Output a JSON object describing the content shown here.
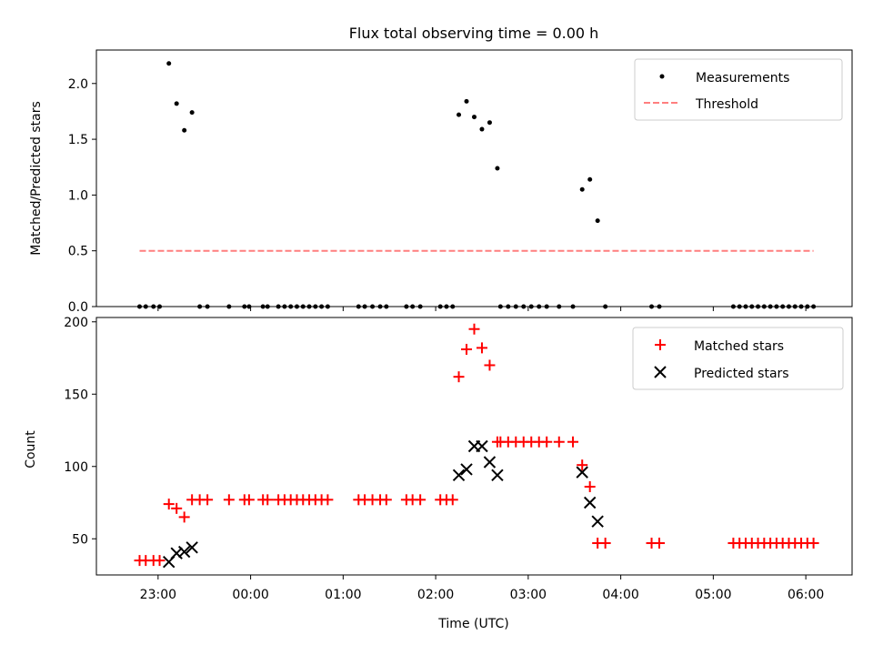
{
  "figure_title": "Flux total observing time = 0.00 h",
  "x_axis_label": "Time (UTC)",
  "colors": {
    "measurement": "#000000",
    "threshold": "#ff7f7f",
    "matched": "#ff0000",
    "predicted": "#000000"
  },
  "chart_data": [
    {
      "type": "scatter",
      "title": "Flux total observing time = 0.00 h",
      "xlabel": "Time (UTC)",
      "ylabel": "Matched/Predicted stars",
      "ylim": [
        0,
        2.3
      ],
      "yticks": [
        "0.0",
        "0.5",
        "1.0",
        "1.5",
        "2.0"
      ],
      "legend": {
        "position": "top-right",
        "entries": [
          "Measurements",
          "Threshold"
        ]
      },
      "series": [
        {
          "name": "Measurements",
          "marker": "dot",
          "points": [
            [
              "22:48",
              0.0
            ],
            [
              "22:52",
              0.0
            ],
            [
              "22:57",
              0.0
            ],
            [
              "23:01",
              0.0
            ],
            [
              "23:07",
              2.18
            ],
            [
              "23:12",
              1.82
            ],
            [
              "23:17",
              1.58
            ],
            [
              "23:22",
              1.74
            ],
            [
              "23:27",
              0.0
            ],
            [
              "23:32",
              0.0
            ],
            [
              "23:46",
              0.0
            ],
            [
              "23:56",
              0.0
            ],
            [
              "23:59",
              0.0
            ],
            [
              "00:08",
              0.0
            ],
            [
              "00:11",
              0.0
            ],
            [
              "00:18",
              0.0
            ],
            [
              "00:22",
              0.0
            ],
            [
              "00:26",
              0.0
            ],
            [
              "00:30",
              0.0
            ],
            [
              "00:34",
              0.0
            ],
            [
              "00:38",
              0.0
            ],
            [
              "00:42",
              0.0
            ],
            [
              "00:46",
              0.0
            ],
            [
              "00:50",
              0.0
            ],
            [
              "01:10",
              0.0
            ],
            [
              "01:14",
              0.0
            ],
            [
              "01:19",
              0.0
            ],
            [
              "01:24",
              0.0
            ],
            [
              "01:28",
              0.0
            ],
            [
              "01:41",
              0.0
            ],
            [
              "01:45",
              0.0
            ],
            [
              "01:50",
              0.0
            ],
            [
              "02:03",
              0.0
            ],
            [
              "02:07",
              0.0
            ],
            [
              "02:11",
              0.0
            ],
            [
              "02:15",
              1.72
            ],
            [
              "02:20",
              1.84
            ],
            [
              "02:25",
              1.7
            ],
            [
              "02:30",
              1.59
            ],
            [
              "02:35",
              1.65
            ],
            [
              "02:40",
              1.24
            ],
            [
              "02:42",
              0.0
            ],
            [
              "02:47",
              0.0
            ],
            [
              "02:52",
              0.0
            ],
            [
              "02:57",
              0.0
            ],
            [
              "03:02",
              0.0
            ],
            [
              "03:07",
              0.0
            ],
            [
              "03:12",
              0.0
            ],
            [
              "03:20",
              0.0
            ],
            [
              "03:29",
              0.0
            ],
            [
              "03:35",
              1.05
            ],
            [
              "03:40",
              1.14
            ],
            [
              "03:45",
              0.77
            ],
            [
              "03:50",
              0.0
            ],
            [
              "04:20",
              0.0
            ],
            [
              "04:25",
              0.0
            ],
            [
              "05:13",
              0.0
            ],
            [
              "05:17",
              0.0
            ],
            [
              "05:21",
              0.0
            ],
            [
              "05:25",
              0.0
            ],
            [
              "05:29",
              0.0
            ],
            [
              "05:33",
              0.0
            ],
            [
              "05:37",
              0.0
            ],
            [
              "05:41",
              0.0
            ],
            [
              "05:45",
              0.0
            ],
            [
              "05:49",
              0.0
            ],
            [
              "05:53",
              0.0
            ],
            [
              "05:57",
              0.0
            ],
            [
              "06:01",
              0.0
            ],
            [
              "06:05",
              0.0
            ]
          ]
        },
        {
          "name": "Threshold",
          "marker": "dashed-line",
          "points": [
            [
              "22:48",
              0.5
            ],
            [
              "06:05",
              0.5
            ]
          ]
        }
      ]
    },
    {
      "type": "scatter",
      "xlabel": "Time (UTC)",
      "ylabel": "Count",
      "ylim": [
        25,
        203
      ],
      "yticks": [
        "50",
        "100",
        "150",
        "200"
      ],
      "xticks": [
        "23:00",
        "00:00",
        "01:00",
        "02:00",
        "03:00",
        "04:00",
        "05:00",
        "06:00"
      ],
      "legend": {
        "position": "top-right",
        "entries": [
          "Matched stars",
          "Predicted stars"
        ]
      },
      "series": [
        {
          "name": "Matched stars",
          "marker": "plus",
          "points": [
            [
              "22:48",
              35
            ],
            [
              "22:52",
              35
            ],
            [
              "22:57",
              35
            ],
            [
              "23:01",
              35
            ],
            [
              "23:07",
              74
            ],
            [
              "23:12",
              71
            ],
            [
              "23:17",
              65
            ],
            [
              "23:22",
              77
            ],
            [
              "23:27",
              77
            ],
            [
              "23:32",
              77
            ],
            [
              "23:46",
              77
            ],
            [
              "23:56",
              77
            ],
            [
              "23:59",
              77
            ],
            [
              "00:08",
              77
            ],
            [
              "00:11",
              77
            ],
            [
              "00:18",
              77
            ],
            [
              "00:22",
              77
            ],
            [
              "00:26",
              77
            ],
            [
              "00:30",
              77
            ],
            [
              "00:34",
              77
            ],
            [
              "00:38",
              77
            ],
            [
              "00:42",
              77
            ],
            [
              "00:46",
              77
            ],
            [
              "00:50",
              77
            ],
            [
              "01:10",
              77
            ],
            [
              "01:14",
              77
            ],
            [
              "01:19",
              77
            ],
            [
              "01:24",
              77
            ],
            [
              "01:28",
              77
            ],
            [
              "01:41",
              77
            ],
            [
              "01:45",
              77
            ],
            [
              "01:50",
              77
            ],
            [
              "02:03",
              77
            ],
            [
              "02:07",
              77
            ],
            [
              "02:11",
              77
            ],
            [
              "02:15",
              162
            ],
            [
              "02:20",
              181
            ],
            [
              "02:25",
              195
            ],
            [
              "02:30",
              182
            ],
            [
              "02:35",
              170
            ],
            [
              "02:40",
              117
            ],
            [
              "02:42",
              117
            ],
            [
              "02:47",
              117
            ],
            [
              "02:52",
              117
            ],
            [
              "02:57",
              117
            ],
            [
              "03:02",
              117
            ],
            [
              "03:07",
              117
            ],
            [
              "03:12",
              117
            ],
            [
              "03:20",
              117
            ],
            [
              "03:29",
              117
            ],
            [
              "03:35",
              101
            ],
            [
              "03:40",
              86
            ],
            [
              "03:45",
              47
            ],
            [
              "03:50",
              47
            ],
            [
              "04:20",
              47
            ],
            [
              "04:25",
              47
            ],
            [
              "05:13",
              47
            ],
            [
              "05:17",
              47
            ],
            [
              "05:21",
              47
            ],
            [
              "05:25",
              47
            ],
            [
              "05:29",
              47
            ],
            [
              "05:33",
              47
            ],
            [
              "05:37",
              47
            ],
            [
              "05:41",
              47
            ],
            [
              "05:45",
              47
            ],
            [
              "05:49",
              47
            ],
            [
              "05:53",
              47
            ],
            [
              "05:57",
              47
            ],
            [
              "06:01",
              47
            ],
            [
              "06:05",
              47
            ]
          ]
        },
        {
          "name": "Predicted stars",
          "marker": "x",
          "points": [
            [
              "23:07",
              34
            ],
            [
              "23:12",
              40
            ],
            [
              "23:17",
              41
            ],
            [
              "23:22",
              44
            ],
            [
              "02:15",
              94
            ],
            [
              "02:20",
              98
            ],
            [
              "02:25",
              114
            ],
            [
              "02:30",
              114
            ],
            [
              "02:35",
              103
            ],
            [
              "02:40",
              94
            ],
            [
              "03:35",
              96
            ],
            [
              "03:40",
              75
            ],
            [
              "03:45",
              62
            ]
          ]
        }
      ]
    }
  ]
}
